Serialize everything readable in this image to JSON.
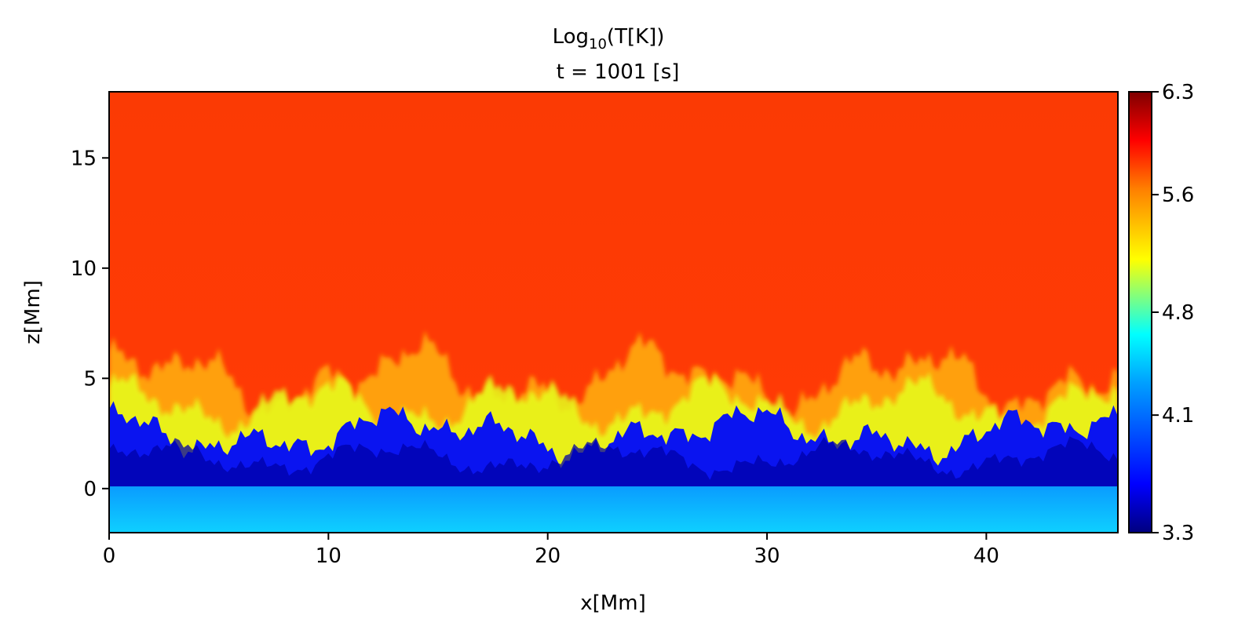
{
  "chart_data": {
    "type": "heatmap",
    "title": {
      "quantity_prefix": "Log",
      "quantity_subscript": "10",
      "quantity_suffix": "(T[K])",
      "time_line": "t = 1001 [s]"
    },
    "xlabel": "x[Mm]",
    "ylabel": "z[Mm]",
    "xlim": [
      0,
      46
    ],
    "ylim": [
      -2,
      18
    ],
    "x_ticks": [
      0,
      10,
      20,
      30,
      40
    ],
    "y_ticks": [
      0,
      5,
      10,
      15
    ],
    "colorbar": {
      "colormap": "jet",
      "range": [
        3.3,
        6.3
      ],
      "tick_labels": [
        "6.3",
        "5.6",
        "4.8",
        "4.1",
        "3.3"
      ],
      "tick_values": [
        6.3,
        5.6,
        4.8,
        4.1,
        3.3
      ]
    },
    "field_description_values": {
      "corona_log10T": 5.9,
      "chromosphere_log10T": 3.6,
      "photosphere_log10T": 4.2,
      "transition_layer_top_z_Mm": 5.0,
      "chromosphere_top_z_Mm": 2.5,
      "photosphere_top_z_Mm": 0.0
    }
  },
  "colors": {
    "jet_stops": [
      "#00007f",
      "#0000ff",
      "#007fff",
      "#00ffff",
      "#7fff7f",
      "#ffff00",
      "#ff7f00",
      "#ff0000",
      "#7f0000"
    ]
  }
}
